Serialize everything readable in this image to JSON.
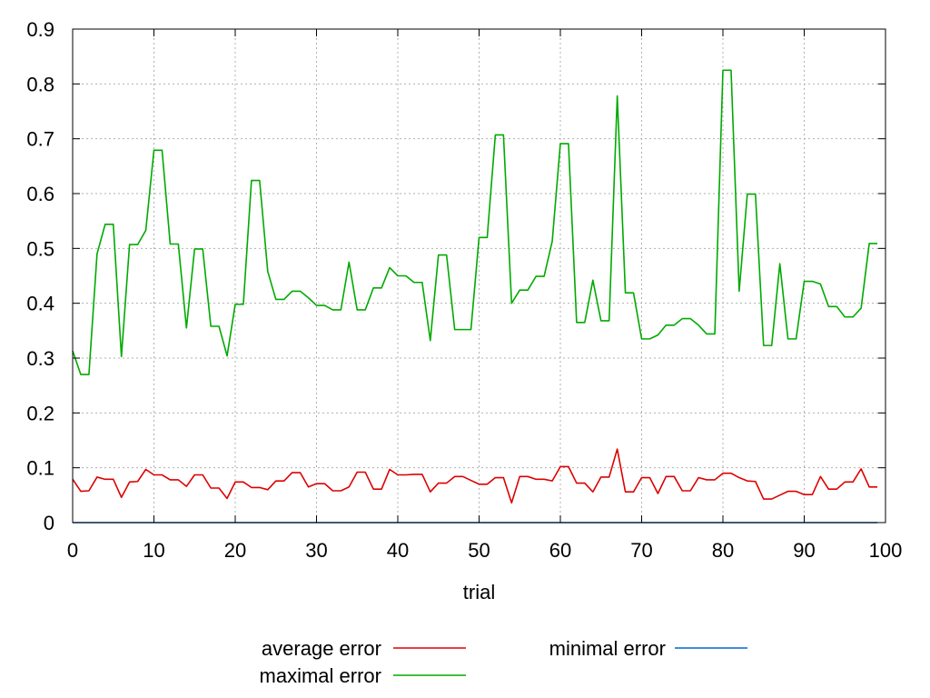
{
  "chart_data": {
    "type": "line",
    "title": "",
    "xlabel": "trial",
    "ylabel": "",
    "xlim": [
      0,
      100
    ],
    "ylim": [
      0,
      0.9
    ],
    "xticks": [
      "0",
      "10",
      "20",
      "30",
      "40",
      "50",
      "60",
      "70",
      "80",
      "90",
      "100"
    ],
    "yticks": [
      "0",
      "0.1",
      "0.2",
      "0.3",
      "0.4",
      "0.5",
      "0.6",
      "0.7",
      "0.8",
      "0.9"
    ],
    "grid": true,
    "legend_position": "bottom",
    "x": [
      0,
      1,
      2,
      3,
      4,
      5,
      6,
      7,
      8,
      9,
      10,
      11,
      12,
      13,
      14,
      15,
      16,
      17,
      18,
      19,
      20,
      21,
      22,
      23,
      24,
      25,
      26,
      27,
      28,
      29,
      30,
      31,
      32,
      33,
      34,
      35,
      36,
      37,
      38,
      39,
      40,
      41,
      42,
      43,
      44,
      45,
      46,
      47,
      48,
      49,
      50,
      51,
      52,
      53,
      54,
      55,
      56,
      57,
      58,
      59,
      60,
      61,
      62,
      63,
      64,
      65,
      66,
      67,
      68,
      69,
      70,
      71,
      72,
      73,
      74,
      75,
      76,
      77,
      78,
      79,
      80,
      81,
      82,
      83,
      84,
      85,
      86,
      87,
      88,
      89,
      90,
      91,
      92,
      93,
      94,
      95,
      96,
      97,
      98,
      99
    ],
    "series": [
      {
        "name": "average error",
        "color": "#dd0000",
        "values": [
          0.079,
          0.057,
          0.058,
          0.083,
          0.079,
          0.079,
          0.046,
          0.074,
          0.075,
          0.097,
          0.087,
          0.087,
          0.078,
          0.078,
          0.066,
          0.087,
          0.087,
          0.063,
          0.063,
          0.044,
          0.074,
          0.074,
          0.064,
          0.064,
          0.06,
          0.076,
          0.076,
          0.091,
          0.091,
          0.065,
          0.071,
          0.071,
          0.058,
          0.058,
          0.065,
          0.092,
          0.092,
          0.061,
          0.061,
          0.097,
          0.087,
          0.087,
          0.088,
          0.088,
          0.056,
          0.072,
          0.072,
          0.084,
          0.084,
          0.077,
          0.07,
          0.07,
          0.082,
          0.082,
          0.036,
          0.084,
          0.084,
          0.079,
          0.079,
          0.076,
          0.102,
          0.102,
          0.072,
          0.072,
          0.056,
          0.083,
          0.083,
          0.134,
          0.056,
          0.056,
          0.082,
          0.082,
          0.053,
          0.084,
          0.084,
          0.058,
          0.058,
          0.082,
          0.078,
          0.078,
          0.09,
          0.09,
          0.082,
          0.076,
          0.075,
          0.043,
          0.043,
          0.05,
          0.057,
          0.057,
          0.051,
          0.051,
          0.084,
          0.061,
          0.061,
          0.074,
          0.074,
          0.098,
          0.065,
          0.065
        ]
      },
      {
        "name": "maximal error",
        "color": "#00aa00",
        "values": [
          0.313,
          0.27,
          0.27,
          0.49,
          0.544,
          0.544,
          0.303,
          0.507,
          0.507,
          0.533,
          0.679,
          0.679,
          0.508,
          0.508,
          0.355,
          0.499,
          0.499,
          0.358,
          0.358,
          0.304,
          0.398,
          0.398,
          0.624,
          0.624,
          0.458,
          0.407,
          0.407,
          0.422,
          0.422,
          0.41,
          0.396,
          0.396,
          0.388,
          0.388,
          0.475,
          0.388,
          0.388,
          0.428,
          0.428,
          0.465,
          0.45,
          0.45,
          0.438,
          0.438,
          0.332,
          0.488,
          0.488,
          0.352,
          0.352,
          0.352,
          0.52,
          0.52,
          0.707,
          0.707,
          0.4,
          0.424,
          0.424,
          0.449,
          0.449,
          0.513,
          0.691,
          0.691,
          0.365,
          0.365,
          0.442,
          0.368,
          0.368,
          0.778,
          0.419,
          0.419,
          0.335,
          0.335,
          0.342,
          0.36,
          0.36,
          0.372,
          0.372,
          0.36,
          0.344,
          0.344,
          0.825,
          0.825,
          0.422,
          0.599,
          0.599,
          0.323,
          0.323,
          0.472,
          0.335,
          0.335,
          0.44,
          0.44,
          0.435,
          0.394,
          0.394,
          0.375,
          0.375,
          0.391,
          0.509,
          0.509
        ]
      },
      {
        "name": "minimal error",
        "color": "#0066cc",
        "values": [
          0,
          0,
          0,
          0,
          0,
          0,
          0,
          0,
          0,
          0,
          0,
          0,
          0,
          0,
          0,
          0,
          0,
          0,
          0,
          0,
          0,
          0,
          0,
          0,
          0,
          0,
          0,
          0,
          0,
          0,
          0,
          0,
          0,
          0,
          0,
          0,
          0,
          0,
          0,
          0,
          0,
          0,
          0,
          0,
          0,
          0,
          0,
          0,
          0,
          0,
          0,
          0,
          0,
          0,
          0,
          0,
          0,
          0,
          0,
          0,
          0,
          0,
          0,
          0,
          0,
          0,
          0,
          0,
          0,
          0,
          0,
          0,
          0,
          0,
          0,
          0,
          0,
          0,
          0,
          0,
          0,
          0,
          0,
          0,
          0,
          0,
          0,
          0,
          0,
          0,
          0,
          0,
          0,
          0,
          0,
          0,
          0,
          0,
          0,
          0
        ]
      }
    ]
  }
}
